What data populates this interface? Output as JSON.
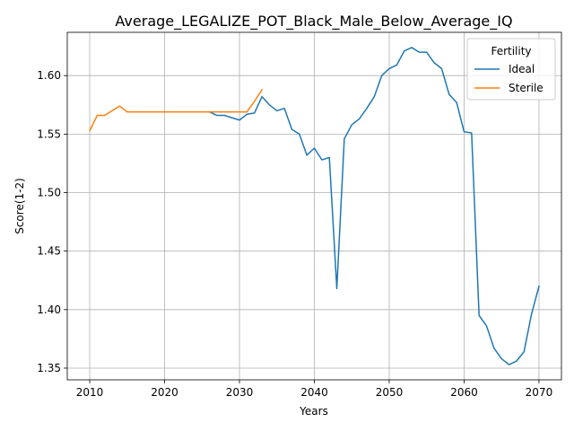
{
  "chart_data": {
    "type": "line",
    "title": "Average_LEGALIZE_POT_Black_Male_Below_Average_IQ",
    "xlabel": "Years",
    "ylabel": "Score(1-2)",
    "xlim": [
      2007,
      2073
    ],
    "ylim": [
      1.34,
      1.637
    ],
    "xticks": [
      2010,
      2020,
      2030,
      2040,
      2050,
      2060,
      2070
    ],
    "yticks": [
      1.35,
      1.4,
      1.45,
      1.5,
      1.55,
      1.6
    ],
    "xtick_labels": [
      "2010",
      "2020",
      "2030",
      "2040",
      "2050",
      "2060",
      "2070"
    ],
    "ytick_labels": [
      "1.35",
      "1.40",
      "1.45",
      "1.50",
      "1.55",
      "1.60"
    ],
    "grid": true,
    "legend": {
      "title": "Fertility",
      "placement": "top-right"
    },
    "series": [
      {
        "name": "Ideal",
        "color": "#1f77b4",
        "x": [
          2026,
          2027,
          2028,
          2029,
          2030,
          2031,
          2032,
          2033,
          2034,
          2035,
          2036,
          2037,
          2038,
          2039,
          2040,
          2041,
          2042,
          2043,
          2044,
          2045,
          2046,
          2047,
          2048,
          2049,
          2050,
          2051,
          2052,
          2053,
          2054,
          2055,
          2056,
          2057,
          2058,
          2059,
          2060,
          2061,
          2062,
          2063,
          2064,
          2065,
          2066,
          2067,
          2068,
          2069,
          2070
        ],
        "values": [
          1.569,
          1.566,
          1.566,
          1.564,
          1.562,
          1.567,
          1.568,
          1.582,
          1.575,
          1.57,
          1.572,
          1.554,
          1.55,
          1.532,
          1.538,
          1.528,
          1.53,
          1.418,
          1.546,
          1.558,
          1.563,
          1.572,
          1.582,
          1.6,
          1.606,
          1.609,
          1.621,
          1.624,
          1.62,
          1.62,
          1.611,
          1.606,
          1.584,
          1.577,
          1.552,
          1.551,
          1.395,
          1.386,
          1.367,
          1.358,
          1.353,
          1.356,
          1.364,
          1.396,
          1.42
        ]
      },
      {
        "name": "Sterile",
        "color": "#ff7f0e",
        "x": [
          2010,
          2011,
          2012,
          2013,
          2014,
          2015,
          2016,
          2017,
          2018,
          2019,
          2020,
          2021,
          2022,
          2023,
          2024,
          2025,
          2026,
          2027,
          2028,
          2029,
          2030,
          2031,
          2032,
          2033
        ],
        "values": [
          1.553,
          1.566,
          1.566,
          1.57,
          1.574,
          1.569,
          1.569,
          1.569,
          1.569,
          1.569,
          1.569,
          1.569,
          1.569,
          1.569,
          1.569,
          1.569,
          1.569,
          1.569,
          1.569,
          1.569,
          1.569,
          1.569,
          1.578,
          1.588
        ]
      }
    ]
  }
}
